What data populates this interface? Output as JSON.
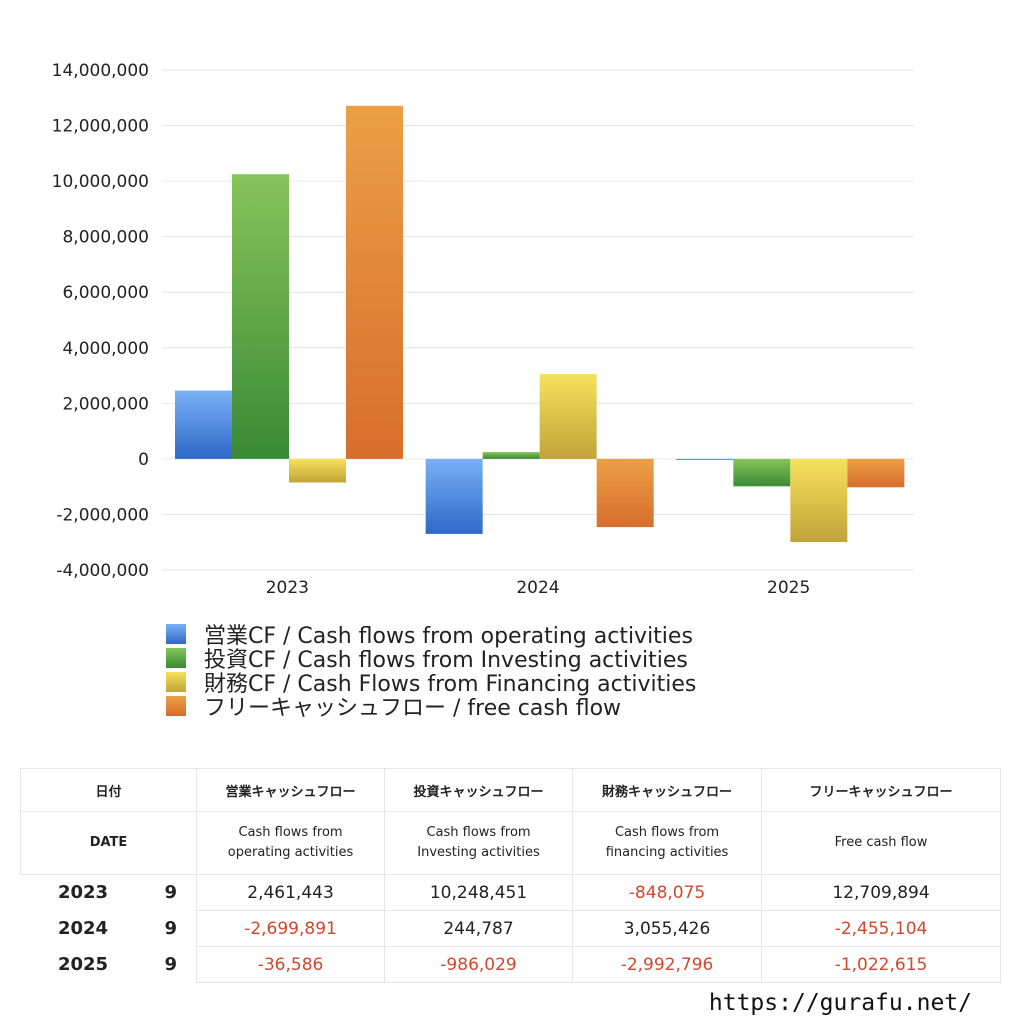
{
  "chart_data": {
    "type": "bar",
    "categories": [
      "2023",
      "2024",
      "2025"
    ],
    "series": [
      {
        "name": "営業CF / Cash flows from operating activities",
        "values": [
          2461443,
          -2699891,
          -36586
        ],
        "color_top": "#7ab0f5",
        "color_bottom": "#2f68c8"
      },
      {
        "name": "投資CF / Cash flows from Investing activities",
        "values": [
          10248451,
          244787,
          -986029
        ],
        "color_top": "#86c45a",
        "color_bottom": "#3a8a35"
      },
      {
        "name": "財務CF / Cash Flows from Financing activities",
        "values": [
          -848075,
          3055426,
          -2992796
        ],
        "color_top": "#f6e25a",
        "color_bottom": "#c1a33a"
      },
      {
        "name": "フリーキャッシュフロー / free cash flow",
        "values": [
          12709894,
          -2455104,
          -1022615
        ],
        "color_top": "#eba045",
        "color_bottom": "#d86d2c"
      }
    ],
    "ylim": [
      -4000000,
      14000000
    ],
    "yticks": [
      14000000,
      12000000,
      10000000,
      8000000,
      6000000,
      4000000,
      2000000,
      0,
      -2000000,
      -4000000
    ],
    "ytick_labels": [
      "14,000,000",
      "12,000,000",
      "10,000,000",
      "8,000,000",
      "6,000,000",
      "4,000,000",
      "2,000,000",
      "0",
      "-2,000,000",
      "-4,000,000"
    ],
    "grid": true,
    "legend_position": "bottom-left"
  },
  "table": {
    "header_jp": {
      "date": "日付",
      "operating": "営業キャッシュフロー",
      "investing": "投資キャッシュフロー",
      "financing": "財務キャッシュフロー",
      "free": "フリーキャッシュフロー"
    },
    "header_en": {
      "date": "DATE",
      "operating_1": "Cash flows from",
      "operating_2": "operating activities",
      "investing_1": "Cash flows from",
      "investing_2": "Investing activities",
      "financing_1": "Cash flows from",
      "financing_2": "financing activities",
      "free": "Free cash flow"
    },
    "rows": [
      {
        "year": "2023",
        "month": "9",
        "operating": "2,461,443",
        "investing": "10,248,451",
        "financing": "-848,075",
        "free": "12,709,894"
      },
      {
        "year": "2024",
        "month": "9",
        "operating": "-2,699,891",
        "investing": "244,787",
        "financing": "3,055,426",
        "free": "-2,455,104"
      },
      {
        "year": "2025",
        "month": "9",
        "operating": "-36,586",
        "investing": "-986,029",
        "financing": "-2,992,796",
        "free": "-1,022,615"
      }
    ],
    "negative_color": "#d2472d"
  },
  "footer": {
    "site": "https://gurafu.net/"
  }
}
